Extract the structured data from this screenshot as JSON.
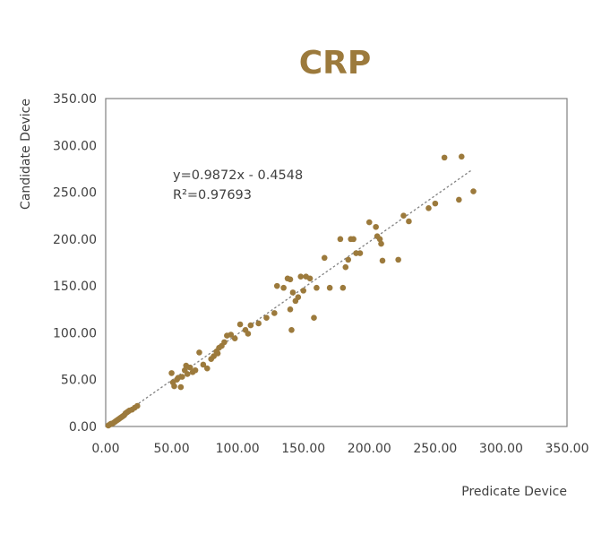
{
  "chart_data": {
    "type": "scatter",
    "title": "CRP",
    "xlabel": "Predicate Device",
    "ylabel": "Candidate Device",
    "xlim": [
      0,
      350
    ],
    "ylim": [
      0,
      350
    ],
    "xticks": [
      "0.00",
      "50.00",
      "100.00",
      "150.00",
      "200.00",
      "250.00",
      "300.00",
      "350.00"
    ],
    "yticks": [
      "0.00",
      "50.00",
      "100.00",
      "150.00",
      "200.00",
      "250.00",
      "300.00",
      "350.00"
    ],
    "grid": false,
    "legend": "none",
    "marker_color": "#9C7A3C",
    "title_color": "#9C7A3C",
    "trendline": {
      "slope": 0.9872,
      "intercept": -0.4548,
      "x_range": [
        0,
        278
      ],
      "style": "dotted",
      "color": "#808080",
      "equation": "y=0.9872x - 0.4548",
      "r2": "R²=0.97693"
    },
    "points": [
      [
        2,
        1
      ],
      [
        3,
        2
      ],
      [
        4,
        3
      ],
      [
        5,
        3
      ],
      [
        6,
        4
      ],
      [
        7,
        5
      ],
      [
        8,
        6
      ],
      [
        9,
        7
      ],
      [
        10,
        8
      ],
      [
        11,
        9
      ],
      [
        12,
        10
      ],
      [
        13,
        11
      ],
      [
        14,
        12
      ],
      [
        15,
        14
      ],
      [
        16,
        15
      ],
      [
        17,
        16
      ],
      [
        18,
        17
      ],
      [
        20,
        18
      ],
      [
        22,
        20
      ],
      [
        24,
        22
      ],
      [
        50,
        57
      ],
      [
        51,
        47
      ],
      [
        52,
        43
      ],
      [
        54,
        50
      ],
      [
        55,
        52
      ],
      [
        57,
        42
      ],
      [
        58,
        53
      ],
      [
        60,
        60
      ],
      [
        61,
        65
      ],
      [
        62,
        56
      ],
      [
        64,
        63
      ],
      [
        66,
        58
      ],
      [
        68,
        60
      ],
      [
        71,
        79
      ],
      [
        74,
        66
      ],
      [
        77,
        62
      ],
      [
        80,
        72
      ],
      [
        82,
        75
      ],
      [
        84,
        80
      ],
      [
        85,
        78
      ],
      [
        86,
        84
      ],
      [
        88,
        86
      ],
      [
        90,
        90
      ],
      [
        92,
        97
      ],
      [
        95,
        98
      ],
      [
        98,
        94
      ],
      [
        102,
        109
      ],
      [
        106,
        103
      ],
      [
        108,
        99
      ],
      [
        110,
        108
      ],
      [
        116,
        110
      ],
      [
        122,
        116
      ],
      [
        128,
        121
      ],
      [
        130,
        150
      ],
      [
        135,
        148
      ],
      [
        138,
        158
      ],
      [
        140,
        125
      ],
      [
        140,
        157
      ],
      [
        141,
        103
      ],
      [
        142,
        143
      ],
      [
        144,
        134
      ],
      [
        146,
        138
      ],
      [
        148,
        160
      ],
      [
        150,
        145
      ],
      [
        152,
        160
      ],
      [
        155,
        158
      ],
      [
        158,
        116
      ],
      [
        160,
        148
      ],
      [
        166,
        180
      ],
      [
        170,
        148
      ],
      [
        178,
        200
      ],
      [
        180,
        148
      ],
      [
        182,
        170
      ],
      [
        184,
        178
      ],
      [
        186,
        200
      ],
      [
        188,
        200
      ],
      [
        190,
        185
      ],
      [
        193,
        185
      ],
      [
        200,
        218
      ],
      [
        205,
        213
      ],
      [
        206,
        203
      ],
      [
        208,
        200
      ],
      [
        209,
        195
      ],
      [
        210,
        177
      ],
      [
        222,
        178
      ],
      [
        226,
        225
      ],
      [
        230,
        219
      ],
      [
        245,
        233
      ],
      [
        250,
        238
      ],
      [
        257,
        287
      ],
      [
        268,
        242
      ],
      [
        270,
        288
      ],
      [
        279,
        251
      ]
    ]
  }
}
